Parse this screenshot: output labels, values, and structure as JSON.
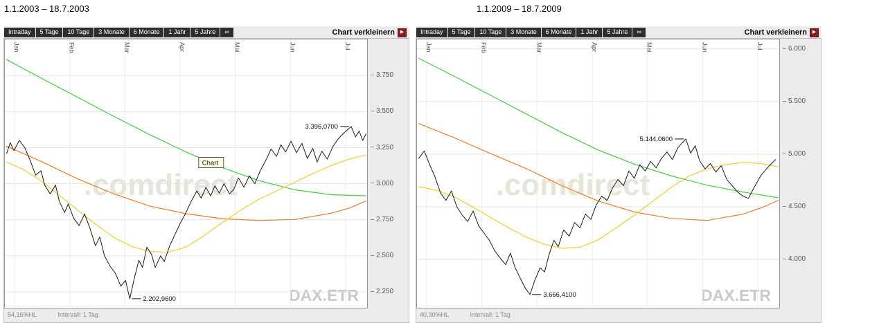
{
  "titles": [
    "1.1.2003 – 18.7.2003",
    "1.1.2009 – 18.7.2009"
  ],
  "toolbar": {
    "tabs": [
      "Intraday",
      "5 Tage",
      "10 Tage",
      "3 Monate",
      "6 Monate",
      "1 Jahr",
      "5 Jahre",
      "∞"
    ],
    "shrink_label": "Chart verkleinern"
  },
  "icons": {
    "shrink_arrow": "▶"
  },
  "watermark": ".comdirect",
  "symbol_watermark": "DAX.ETR",
  "colors": {
    "watermark": "#e7e4d8",
    "symbol_watermark": "#c9c9c9",
    "tab_background": "#2e2e2e",
    "shrink_button": "#8c1c1c",
    "price_line": "#1a1a1a",
    "ma_long": "#44cc44",
    "ma_mid": "#ef7d22",
    "ma_short": "#f0cf2a"
  },
  "chart_data": [
    {
      "type": "line",
      "title": "1.1.2003 – 18.7.2003",
      "months": [
        "Jan",
        "Feb",
        "Mar",
        "Apr",
        "Mai",
        "Jun",
        "Jul"
      ],
      "ylim": [
        2140,
        4000
      ],
      "yticks": [
        3750,
        3500,
        3250,
        3000,
        2750,
        2500,
        2250
      ],
      "ytick_labels": [
        "3.750",
        "3.500",
        "3.250",
        "3.000",
        "2.750",
        "2.500",
        "2.250"
      ],
      "high": {
        "label": "3.396,0700",
        "f": 0.956,
        "value": 3396.07
      },
      "low": {
        "label": "2.202,9600",
        "f": 0.345,
        "value": 2202.96
      },
      "tooltip": {
        "label": "Chart",
        "f": 0.535,
        "value": 3125
      },
      "footer": {
        "hl": "54,16%HL",
        "interval": "Intervall: 1 Tag"
      },
      "series": [
        {
          "name": "ma-long-green",
          "color": "#44cc44",
          "width": 1.2,
          "points": [
            [
              0.005,
              3860
            ],
            [
              0.1,
              3732
            ],
            [
              0.2,
              3600
            ],
            [
              0.3,
              3468
            ],
            [
              0.4,
              3340
            ],
            [
              0.5,
              3220
            ],
            [
              0.6,
              3112
            ],
            [
              0.7,
              3022
            ],
            [
              0.8,
              2958
            ],
            [
              0.9,
              2924
            ],
            [
              0.997,
              2916
            ]
          ]
        },
        {
          "name": "ma-mid-orange",
          "color": "#ef7d22",
          "width": 1.2,
          "points": [
            [
              0.005,
              3260
            ],
            [
              0.1,
              3155
            ],
            [
              0.2,
              3035
            ],
            [
              0.3,
              2930
            ],
            [
              0.4,
              2845
            ],
            [
              0.5,
              2792
            ],
            [
              0.6,
              2758
            ],
            [
              0.7,
              2745
            ],
            [
              0.8,
              2752
            ],
            [
              0.9,
              2795
            ],
            [
              0.95,
              2830
            ],
            [
              0.997,
              2880
            ]
          ]
        },
        {
          "name": "ma-short-yellow",
          "color": "#f0cf2a",
          "width": 1.2,
          "points": [
            [
              0.005,
              3150
            ],
            [
              0.05,
              3100
            ],
            [
              0.1,
              3020
            ],
            [
              0.15,
              2920
            ],
            [
              0.2,
              2820
            ],
            [
              0.25,
              2720
            ],
            [
              0.3,
              2630
            ],
            [
              0.35,
              2565
            ],
            [
              0.4,
              2530
            ],
            [
              0.45,
              2525
            ],
            [
              0.5,
              2560
            ],
            [
              0.55,
              2640
            ],
            [
              0.6,
              2730
            ],
            [
              0.65,
              2815
            ],
            [
              0.7,
              2890
            ],
            [
              0.75,
              2950
            ],
            [
              0.8,
              3010
            ],
            [
              0.85,
              3070
            ],
            [
              0.9,
              3125
            ],
            [
              0.95,
              3170
            ],
            [
              0.997,
              3200
            ]
          ]
        },
        {
          "name": "price",
          "color": "#1a1a1a",
          "width": 1,
          "points": [
            [
              0.005,
              3210
            ],
            [
              0.015,
              3285
            ],
            [
              0.025,
              3230
            ],
            [
              0.04,
              3300
            ],
            [
              0.055,
              3250
            ],
            [
              0.07,
              3160
            ],
            [
              0.085,
              3060
            ],
            [
              0.1,
              3090
            ],
            [
              0.11,
              2990
            ],
            [
              0.125,
              2930
            ],
            [
              0.14,
              2990
            ],
            [
              0.15,
              2880
            ],
            [
              0.165,
              2800
            ],
            [
              0.175,
              2860
            ],
            [
              0.19,
              2760
            ],
            [
              0.205,
              2710
            ],
            [
              0.22,
              2790
            ],
            [
              0.235,
              2690
            ],
            [
              0.25,
              2570
            ],
            [
              0.262,
              2630
            ],
            [
              0.275,
              2500
            ],
            [
              0.29,
              2430
            ],
            [
              0.305,
              2380
            ],
            [
              0.32,
              2290
            ],
            [
              0.333,
              2330
            ],
            [
              0.345,
              2203
            ],
            [
              0.357,
              2340
            ],
            [
              0.37,
              2470
            ],
            [
              0.38,
              2420
            ],
            [
              0.392,
              2560
            ],
            [
              0.405,
              2510
            ],
            [
              0.415,
              2420
            ],
            [
              0.43,
              2500
            ],
            [
              0.44,
              2460
            ],
            [
              0.455,
              2570
            ],
            [
              0.47,
              2650
            ],
            [
              0.485,
              2730
            ],
            [
              0.5,
              2800
            ],
            [
              0.515,
              2880
            ],
            [
              0.53,
              2950
            ],
            [
              0.542,
              2900
            ],
            [
              0.555,
              2975
            ],
            [
              0.568,
              2915
            ],
            [
              0.58,
              2985
            ],
            [
              0.592,
              2935
            ],
            [
              0.605,
              3000
            ],
            [
              0.62,
              2930
            ],
            [
              0.632,
              2960
            ],
            [
              0.645,
              3040
            ],
            [
              0.66,
              2975
            ],
            [
              0.675,
              3055
            ],
            [
              0.69,
              3000
            ],
            [
              0.705,
              3090
            ],
            [
              0.72,
              3160
            ],
            [
              0.735,
              3240
            ],
            [
              0.75,
              3190
            ],
            [
              0.762,
              3270
            ],
            [
              0.775,
              3220
            ],
            [
              0.79,
              3295
            ],
            [
              0.805,
              3215
            ],
            [
              0.82,
              3280
            ],
            [
              0.835,
              3175
            ],
            [
              0.85,
              3245
            ],
            [
              0.862,
              3150
            ],
            [
              0.875,
              3225
            ],
            [
              0.89,
              3170
            ],
            [
              0.905,
              3255
            ],
            [
              0.92,
              3310
            ],
            [
              0.935,
              3350
            ],
            [
              0.956,
              3396
            ],
            [
              0.968,
              3325
            ],
            [
              0.978,
              3365
            ],
            [
              0.988,
              3300
            ],
            [
              0.997,
              3345
            ]
          ]
        }
      ]
    },
    {
      "type": "line",
      "title": "1.1.2009 – 18.7.2009",
      "months": [
        "Jan",
        "Feb",
        "Mar",
        "Apr",
        "Mai",
        "Jun",
        "Jul"
      ],
      "ylim": [
        3540,
        6090
      ],
      "yticks": [
        6000,
        5500,
        5000,
        4500,
        4000
      ],
      "ytick_labels": [
        "6.000",
        "5.500",
        "5.000",
        "4.500",
        "4.000"
      ],
      "high": {
        "label": "5.144,0600",
        "f": 0.742,
        "value": 5144.06
      },
      "low": {
        "label": "3.666,4100",
        "f": 0.312,
        "value": 3666.41
      },
      "footer": {
        "hl": "40,30%HL",
        "interval": "Intervall: 1 Tag"
      },
      "series": [
        {
          "name": "ma-long-green",
          "color": "#44cc44",
          "width": 1.2,
          "points": [
            [
              0.005,
              5910
            ],
            [
              0.1,
              5745
            ],
            [
              0.2,
              5565
            ],
            [
              0.3,
              5385
            ],
            [
              0.4,
              5205
            ],
            [
              0.5,
              5040
            ],
            [
              0.6,
              4905
            ],
            [
              0.7,
              4795
            ],
            [
              0.8,
              4705
            ],
            [
              0.9,
              4640
            ],
            [
              0.997,
              4585
            ]
          ]
        },
        {
          "name": "ma-mid-orange",
          "color": "#ef7d22",
          "width": 1.2,
          "points": [
            [
              0.005,
              5290
            ],
            [
              0.1,
              5160
            ],
            [
              0.2,
              5010
            ],
            [
              0.3,
              4865
            ],
            [
              0.4,
              4700
            ],
            [
              0.5,
              4555
            ],
            [
              0.6,
              4450
            ],
            [
              0.7,
              4390
            ],
            [
              0.8,
              4370
            ],
            [
              0.9,
              4430
            ],
            [
              0.95,
              4490
            ],
            [
              0.997,
              4560
            ]
          ]
        },
        {
          "name": "ma-short-yellow",
          "color": "#f0cf2a",
          "width": 1.2,
          "points": [
            [
              0.005,
              4690
            ],
            [
              0.05,
              4660
            ],
            [
              0.1,
              4600
            ],
            [
              0.15,
              4505
            ],
            [
              0.2,
              4405
            ],
            [
              0.25,
              4305
            ],
            [
              0.3,
              4215
            ],
            [
              0.35,
              4145
            ],
            [
              0.4,
              4105
            ],
            [
              0.45,
              4115
            ],
            [
              0.5,
              4185
            ],
            [
              0.55,
              4300
            ],
            [
              0.6,
              4420
            ],
            [
              0.65,
              4550
            ],
            [
              0.7,
              4680
            ],
            [
              0.75,
              4790
            ],
            [
              0.8,
              4860
            ],
            [
              0.85,
              4900
            ],
            [
              0.9,
              4920
            ],
            [
              0.95,
              4910
            ],
            [
              0.997,
              4880
            ]
          ]
        },
        {
          "name": "price",
          "color": "#1a1a1a",
          "width": 1,
          "points": [
            [
              0.005,
              4960
            ],
            [
              0.02,
              5030
            ],
            [
              0.035,
              4900
            ],
            [
              0.05,
              4780
            ],
            [
              0.065,
              4630
            ],
            [
              0.08,
              4560
            ],
            [
              0.095,
              4650
            ],
            [
              0.11,
              4500
            ],
            [
              0.125,
              4420
            ],
            [
              0.14,
              4360
            ],
            [
              0.155,
              4460
            ],
            [
              0.17,
              4320
            ],
            [
              0.185,
              4250
            ],
            [
              0.2,
              4180
            ],
            [
              0.215,
              4080
            ],
            [
              0.23,
              4010
            ],
            [
              0.245,
              3950
            ],
            [
              0.258,
              4060
            ],
            [
              0.27,
              3930
            ],
            [
              0.285,
              3820
            ],
            [
              0.3,
              3720
            ],
            [
              0.312,
              3666
            ],
            [
              0.325,
              3800
            ],
            [
              0.34,
              3920
            ],
            [
              0.352,
              3880
            ],
            [
              0.365,
              4050
            ],
            [
              0.378,
              4180
            ],
            [
              0.39,
              4120
            ],
            [
              0.405,
              4280
            ],
            [
              0.42,
              4220
            ],
            [
              0.435,
              4350
            ],
            [
              0.45,
              4300
            ],
            [
              0.465,
              4430
            ],
            [
              0.48,
              4380
            ],
            [
              0.495,
              4520
            ],
            [
              0.51,
              4600
            ],
            [
              0.525,
              4560
            ],
            [
              0.54,
              4680
            ],
            [
              0.555,
              4760
            ],
            [
              0.57,
              4700
            ],
            [
              0.585,
              4840
            ],
            [
              0.6,
              4770
            ],
            [
              0.615,
              4900
            ],
            [
              0.63,
              4840
            ],
            [
              0.645,
              4930
            ],
            [
              0.66,
              4870
            ],
            [
              0.675,
              4960
            ],
            [
              0.69,
              5020
            ],
            [
              0.705,
              4950
            ],
            [
              0.72,
              5060
            ],
            [
              0.742,
              5144
            ],
            [
              0.755,
              5010
            ],
            [
              0.768,
              5080
            ],
            [
              0.78,
              4940
            ],
            [
              0.795,
              4860
            ],
            [
              0.81,
              4910
            ],
            [
              0.825,
              4830
            ],
            [
              0.84,
              4890
            ],
            [
              0.855,
              4760
            ],
            [
              0.87,
              4700
            ],
            [
              0.885,
              4640
            ],
            [
              0.9,
              4600
            ],
            [
              0.915,
              4580
            ],
            [
              0.93,
              4680
            ],
            [
              0.95,
              4800
            ],
            [
              0.97,
              4880
            ],
            [
              0.99,
              4950
            ]
          ]
        }
      ]
    }
  ]
}
